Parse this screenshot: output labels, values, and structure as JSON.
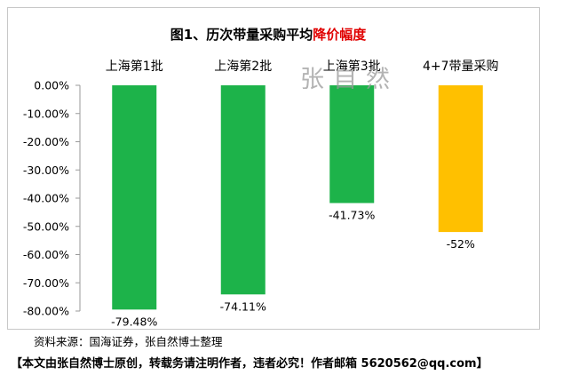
{
  "chart_data": {
    "type": "bar",
    "title": "图1、历次带量采购平均",
    "title_highlight": "降价幅度",
    "categories": [
      "上海第1批",
      "上海第2批",
      "上海第3批",
      "4+7带量采购"
    ],
    "values": [
      -79.48,
      -74.11,
      -41.73,
      -52
    ],
    "data_labels": [
      "-79.48%",
      "-74.11%",
      "-41.73%",
      "-52%"
    ],
    "bar_colors": [
      "#1db34a",
      "#1db34a",
      "#1db34a",
      "#ffc000"
    ],
    "ylim": [
      -80,
      0
    ],
    "ytick_labels": [
      "0.00%",
      "-10.00%",
      "-20.00%",
      "-30.00%",
      "-40.00%",
      "-50.00%",
      "-60.00%",
      "-70.00%",
      "-80.00%"
    ],
    "ytick_values": [
      0,
      -10,
      -20,
      -30,
      -40,
      -50,
      -60,
      -70,
      -80
    ],
    "grid": false,
    "xlabel": "",
    "ylabel": "",
    "title_highlight_color": "#e00000"
  },
  "watermark": "张自然",
  "source_note": "资料来源：国海证券，张自然博士整理",
  "copyright_note": "【本文由张自然博士原创，转载务请注明作者，违者必究！作者邮箱 5620562@qq.com】"
}
